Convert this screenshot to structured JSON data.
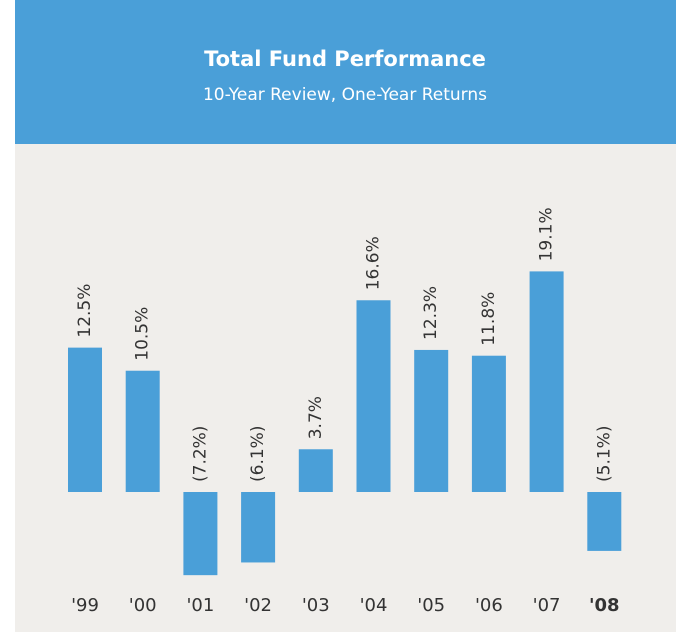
{
  "chart_data": {
    "type": "bar",
    "title": "Total Fund Performance",
    "subtitle": "10-Year Review, One-Year Returns",
    "categories": [
      "'99",
      "'00",
      "'01",
      "'02",
      "'03",
      "'04",
      "'05",
      "'06",
      "'07",
      "'08"
    ],
    "values": [
      12.5,
      10.5,
      -7.2,
      -6.1,
      3.7,
      16.6,
      12.3,
      11.8,
      19.1,
      -5.1
    ],
    "value_labels": [
      "12.5%",
      "10.5%",
      "(7.2%)",
      "(6.1%)",
      "3.7%",
      "16.6%",
      "12.3%",
      "11.8%",
      "19.1%",
      "(5.1%)"
    ],
    "color": "#4a9fd8",
    "bold_category_index": 9
  }
}
